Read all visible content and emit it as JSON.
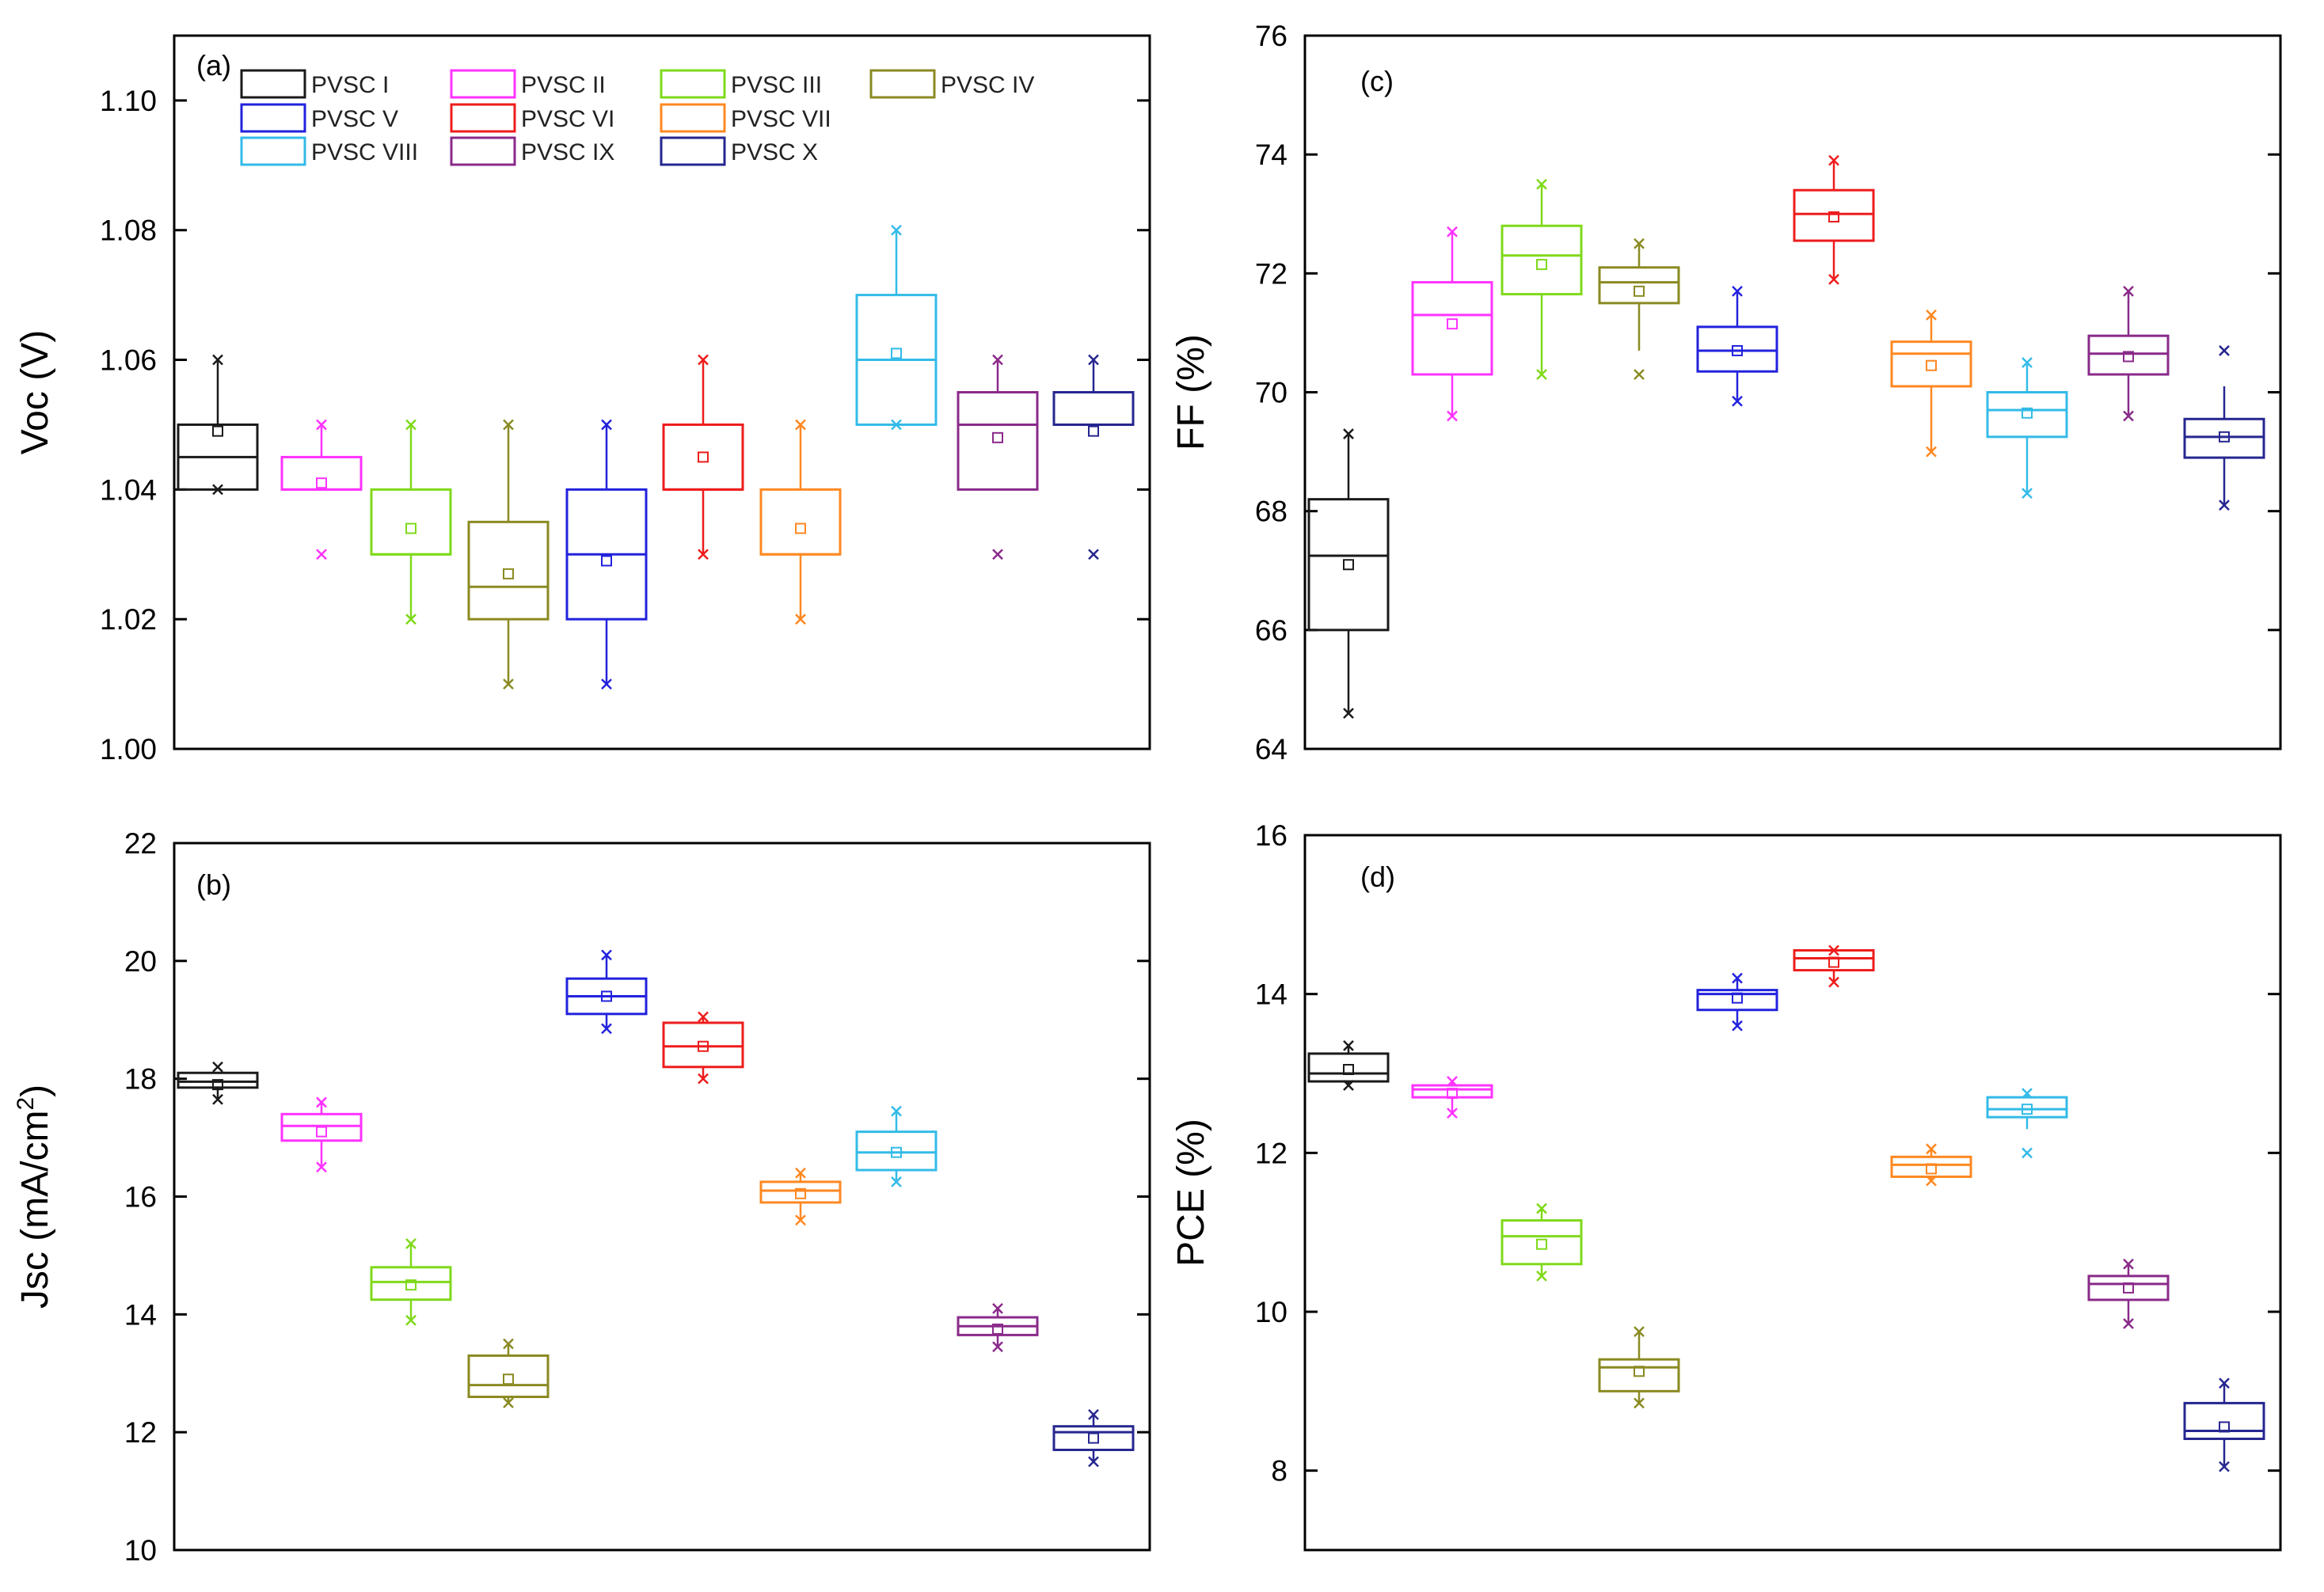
{
  "series_names": [
    "PVSC I",
    "PVSC II",
    "PVSC III",
    "PVSC IV",
    "PVSC V",
    "PVSC VI",
    "PVSC VII",
    "PVSC VIII",
    "PVSC IX",
    "PVSC X"
  ],
  "series_colors": [
    "#1a1a1a",
    "#ff33ff",
    "#7fd91a",
    "#8a8a22",
    "#2222dd",
    "#ee1c1c",
    "#ff8822",
    "#33bbe8",
    "#8a2a8a",
    "#262690"
  ],
  "chart_data": [
    {
      "id": "a",
      "type": "box",
      "panel_label": "(a)",
      "ylabel": "Voc (V)",
      "ylim": [
        1.0,
        1.11
      ],
      "yticks": [
        1.0,
        1.02,
        1.04,
        1.06,
        1.08,
        1.1
      ],
      "tick_labels": [
        "1.00",
        "1.02",
        "1.04",
        "1.06",
        "1.08",
        "1.10"
      ],
      "legend": "top-left",
      "boxes": [
        {
          "q1": 1.04,
          "median": 1.045,
          "q3": 1.05,
          "mean": 1.049,
          "whisker_low": 1.04,
          "whisker_high": 1.06,
          "max_marker": 1.06,
          "min_marker": 1.04
        },
        {
          "q1": 1.04,
          "median": 1.04,
          "q3": 1.045,
          "mean": 1.041,
          "whisker_low": 1.04,
          "whisker_high": 1.05,
          "max_marker": 1.05,
          "min_marker": 1.03
        },
        {
          "q1": 1.03,
          "median": 1.03,
          "q3": 1.04,
          "mean": 1.034,
          "whisker_low": 1.02,
          "whisker_high": 1.05,
          "max_marker": 1.05,
          "min_marker": 1.02
        },
        {
          "q1": 1.02,
          "median": 1.025,
          "q3": 1.035,
          "mean": 1.027,
          "whisker_low": 1.01,
          "whisker_high": 1.05,
          "max_marker": 1.05,
          "min_marker": 1.01
        },
        {
          "q1": 1.02,
          "median": 1.03,
          "q3": 1.04,
          "mean": 1.029,
          "whisker_low": 1.01,
          "whisker_high": 1.05,
          "max_marker": 1.05,
          "min_marker": 1.01
        },
        {
          "q1": 1.04,
          "median": 1.04,
          "q3": 1.05,
          "mean": 1.045,
          "whisker_low": 1.03,
          "whisker_high": 1.06,
          "max_marker": 1.06,
          "min_marker": 1.03
        },
        {
          "q1": 1.03,
          "median": 1.03,
          "q3": 1.04,
          "mean": 1.034,
          "whisker_low": 1.02,
          "whisker_high": 1.05,
          "max_marker": 1.05,
          "min_marker": 1.02
        },
        {
          "q1": 1.05,
          "median": 1.06,
          "q3": 1.07,
          "mean": 1.061,
          "whisker_low": 1.05,
          "whisker_high": 1.08,
          "max_marker": 1.08,
          "min_marker": 1.05
        },
        {
          "q1": 1.04,
          "median": 1.05,
          "q3": 1.055,
          "mean": 1.048,
          "whisker_low": 1.04,
          "whisker_high": 1.06,
          "max_marker": 1.06,
          "min_marker": 1.03
        },
        {
          "q1": 1.05,
          "median": 1.05,
          "q3": 1.055,
          "mean": 1.049,
          "whisker_low": 1.05,
          "whisker_high": 1.06,
          "max_marker": 1.06,
          "min_marker": 1.03
        }
      ]
    },
    {
      "id": "b",
      "type": "box",
      "panel_label": "(b)",
      "ylabel": "Jsc (mA/cm2)",
      "ylim": [
        10,
        22
      ],
      "yticks": [
        10,
        12,
        14,
        16,
        18,
        20,
        22
      ],
      "tick_labels": [
        "10",
        "12",
        "14",
        "16",
        "18",
        "20",
        "22"
      ],
      "boxes": [
        {
          "q1": 17.85,
          "median": 17.95,
          "q3": 18.1,
          "mean": 17.9,
          "whisker_low": 17.65,
          "whisker_high": 18.1,
          "max_marker": 18.2,
          "min_marker": 17.65
        },
        {
          "q1": 16.95,
          "median": 17.2,
          "q3": 17.4,
          "mean": 17.1,
          "whisker_low": 16.5,
          "whisker_high": 17.6,
          "max_marker": 17.6,
          "min_marker": 16.5
        },
        {
          "q1": 14.25,
          "median": 14.55,
          "q3": 14.8,
          "mean": 14.5,
          "whisker_low": 13.9,
          "whisker_high": 15.2,
          "max_marker": 15.2,
          "min_marker": 13.9
        },
        {
          "q1": 12.6,
          "median": 12.8,
          "q3": 13.3,
          "mean": 12.9,
          "whisker_low": 12.5,
          "whisker_high": 13.5,
          "max_marker": 13.5,
          "min_marker": 12.5
        },
        {
          "q1": 19.1,
          "median": 19.4,
          "q3": 19.7,
          "mean": 19.4,
          "whisker_low": 18.85,
          "whisker_high": 20.1,
          "max_marker": 20.1,
          "min_marker": 18.85
        },
        {
          "q1": 18.2,
          "median": 18.55,
          "q3": 18.95,
          "mean": 18.55,
          "whisker_low": 18.0,
          "whisker_high": 19.05,
          "max_marker": 19.05,
          "min_marker": 18.0
        },
        {
          "q1": 15.9,
          "median": 16.1,
          "q3": 16.25,
          "mean": 16.05,
          "whisker_low": 15.6,
          "whisker_high": 16.4,
          "max_marker": 16.4,
          "min_marker": 15.6
        },
        {
          "q1": 16.45,
          "median": 16.75,
          "q3": 17.1,
          "mean": 16.75,
          "whisker_low": 16.25,
          "whisker_high": 17.45,
          "max_marker": 17.45,
          "min_marker": 16.25
        },
        {
          "q1": 13.65,
          "median": 13.8,
          "q3": 13.95,
          "mean": 13.75,
          "whisker_low": 13.45,
          "whisker_high": 14.1,
          "max_marker": 14.1,
          "min_marker": 13.45
        },
        {
          "q1": 11.7,
          "median": 12.0,
          "q3": 12.1,
          "mean": 11.9,
          "whisker_low": 11.5,
          "whisker_high": 12.3,
          "max_marker": 12.3,
          "min_marker": 11.5
        }
      ]
    },
    {
      "id": "c",
      "type": "box",
      "panel_label": "(c)",
      "ylabel": "FF (%)",
      "ylim": [
        64,
        76
      ],
      "yticks": [
        64,
        66,
        68,
        70,
        72,
        74,
        76
      ],
      "tick_labels": [
        "64",
        "66",
        "68",
        "70",
        "72",
        "74",
        "76"
      ],
      "boxes": [
        {
          "q1": 66.0,
          "median": 67.25,
          "q3": 68.2,
          "mean": 67.1,
          "whisker_low": 64.6,
          "whisker_high": 69.3,
          "max_marker": 69.3,
          "min_marker": 64.6
        },
        {
          "q1": 70.3,
          "median": 71.3,
          "q3": 71.85,
          "mean": 71.15,
          "whisker_low": 69.6,
          "whisker_high": 72.7,
          "max_marker": 72.7,
          "min_marker": 69.6
        },
        {
          "q1": 71.65,
          "median": 72.3,
          "q3": 72.8,
          "mean": 72.15,
          "whisker_low": 70.3,
          "whisker_high": 73.5,
          "max_marker": 73.5,
          "min_marker": 70.3
        },
        {
          "q1": 71.5,
          "median": 71.85,
          "q3": 72.1,
          "mean": 71.7,
          "whisker_low": 70.7,
          "whisker_high": 72.5,
          "max_marker": 72.5,
          "min_marker": 70.3
        },
        {
          "q1": 70.35,
          "median": 70.7,
          "q3": 71.1,
          "mean": 70.7,
          "whisker_low": 69.85,
          "whisker_high": 71.7,
          "max_marker": 71.7,
          "min_marker": 69.85
        },
        {
          "q1": 72.55,
          "median": 73.0,
          "q3": 73.4,
          "mean": 72.95,
          "whisker_low": 71.9,
          "whisker_high": 73.9,
          "max_marker": 73.9,
          "min_marker": 71.9
        },
        {
          "q1": 70.1,
          "median": 70.65,
          "q3": 70.85,
          "mean": 70.45,
          "whisker_low": 69.0,
          "whisker_high": 71.3,
          "max_marker": 71.3,
          "min_marker": 69.0
        },
        {
          "q1": 69.25,
          "median": 69.7,
          "q3": 70.0,
          "mean": 69.65,
          "whisker_low": 68.3,
          "whisker_high": 70.5,
          "max_marker": 70.5,
          "min_marker": 68.3
        },
        {
          "q1": 70.3,
          "median": 70.65,
          "q3": 70.95,
          "mean": 70.6,
          "whisker_low": 69.6,
          "whisker_high": 71.7,
          "max_marker": 71.7,
          "min_marker": 69.6
        },
        {
          "q1": 68.9,
          "median": 69.25,
          "q3": 69.55,
          "mean": 69.25,
          "whisker_low": 68.1,
          "whisker_high": 70.1,
          "max_marker": 70.7,
          "min_marker": 68.1
        }
      ]
    },
    {
      "id": "d",
      "type": "box",
      "panel_label": "(d)",
      "ylabel": "PCE (%)",
      "ylim": [
        7,
        16
      ],
      "yticks": [
        8,
        10,
        12,
        14,
        16
      ],
      "tick_labels": [
        "8",
        "10",
        "12",
        "14",
        "16"
      ],
      "boxes": [
        {
          "q1": 12.9,
          "median": 13.0,
          "q3": 13.25,
          "mean": 13.05,
          "whisker_low": 12.85,
          "whisker_high": 13.35,
          "max_marker": 13.35,
          "min_marker": 12.85
        },
        {
          "q1": 12.7,
          "median": 12.8,
          "q3": 12.85,
          "mean": 12.75,
          "whisker_low": 12.5,
          "whisker_high": 12.9,
          "max_marker": 12.9,
          "min_marker": 12.5
        },
        {
          "q1": 10.6,
          "median": 10.95,
          "q3": 11.15,
          "mean": 10.85,
          "whisker_low": 10.45,
          "whisker_high": 11.3,
          "max_marker": 11.3,
          "min_marker": 10.45
        },
        {
          "q1": 9.0,
          "median": 9.3,
          "q3": 9.4,
          "mean": 9.25,
          "whisker_low": 8.85,
          "whisker_high": 9.75,
          "max_marker": 9.75,
          "min_marker": 8.85
        },
        {
          "q1": 13.8,
          "median": 14.0,
          "q3": 14.05,
          "mean": 13.95,
          "whisker_low": 13.6,
          "whisker_high": 14.2,
          "max_marker": 14.2,
          "min_marker": 13.6
        },
        {
          "q1": 14.3,
          "median": 14.45,
          "q3": 14.55,
          "mean": 14.4,
          "whisker_low": 14.15,
          "whisker_high": 14.55,
          "max_marker": 14.55,
          "min_marker": 14.15
        },
        {
          "q1": 11.7,
          "median": 11.85,
          "q3": 11.95,
          "mean": 11.8,
          "whisker_low": 11.65,
          "whisker_high": 12.05,
          "max_marker": 12.05,
          "min_marker": 11.65
        },
        {
          "q1": 12.45,
          "median": 12.55,
          "q3": 12.7,
          "mean": 12.55,
          "whisker_low": 12.3,
          "whisker_high": 12.75,
          "max_marker": 12.75,
          "min_marker": 12.0
        },
        {
          "q1": 10.15,
          "median": 10.35,
          "q3": 10.45,
          "mean": 10.3,
          "whisker_low": 9.85,
          "whisker_high": 10.6,
          "max_marker": 10.6,
          "min_marker": 9.85
        },
        {
          "q1": 8.4,
          "median": 8.5,
          "q3": 8.85,
          "mean": 8.55,
          "whisker_low": 8.05,
          "whisker_high": 9.1,
          "max_marker": 9.1,
          "min_marker": 8.05
        }
      ]
    }
  ]
}
